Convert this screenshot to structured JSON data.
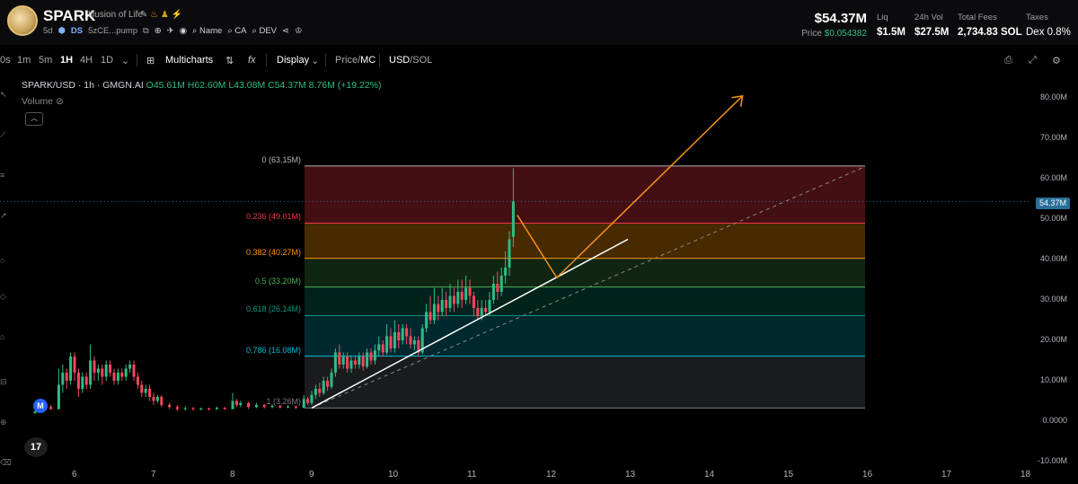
{
  "header": {
    "token_name": "SPARK",
    "token_fullname": "Illusion of Life",
    "age": "5d",
    "ds_label": "DS",
    "address": "5zCE...pump",
    "name_link": "Name",
    "ca_link": "CA",
    "dev_link": "DEV",
    "market_cap": "$54.37M",
    "price_label": "Price",
    "price_value": "$0.054382",
    "stats": [
      {
        "label": "Liq",
        "value": "$1.5M"
      },
      {
        "label": "24h Vol",
        "value": "$27.5M"
      },
      {
        "label": "Total Fees",
        "value": "2,734.83 SOL"
      },
      {
        "label": "Taxes",
        "value": "Dex 0.8%"
      }
    ]
  },
  "toolbar": {
    "timeframes": [
      "0s",
      "1m",
      "5m",
      "1H",
      "4H",
      "1D"
    ],
    "active_timeframe": "1H",
    "multicharts": "Multicharts",
    "fx": "fx",
    "display": "Display",
    "price_mc": {
      "a": "Price",
      "b": "MC"
    },
    "usd_sol": {
      "a": "USD",
      "b": "SOL"
    }
  },
  "legend": {
    "symbol": "SPARK/USD · 1h · GMGN.AI",
    "o": "O45.61M",
    "h": "H62.60M",
    "l": "L43.08M",
    "c": "C54.37M",
    "chg": "8.76M (+19.22%)",
    "volume_label": "Volume"
  },
  "colors": {
    "up": "#2ebd85",
    "down": "#f6465d",
    "orange": "#f7931a",
    "accent": "#2a6f99"
  },
  "fib_labels": [
    {
      "text": "0 (63.15M)",
      "color": "#b2b5be"
    },
    {
      "text": "0.236 (49.01M)",
      "color": "#f23645"
    },
    {
      "text": "0.382 (40.27M)",
      "color": "#ff9800"
    },
    {
      "text": "0.5 (33.20M)",
      "color": "#4caf50"
    },
    {
      "text": "0.618 (26.14M)",
      "color": "#089981"
    },
    {
      "text": "0.786 (16.08M)",
      "color": "#00bcd4"
    },
    {
      "text": "1 (3.26M)",
      "color": "#787b86"
    }
  ],
  "price_tag": "54.37M",
  "y_axis": [
    "80.00M",
    "70.00M",
    "60.00M",
    "50.00M",
    "40.00M",
    "30.00M",
    "20.00M",
    "10.00M",
    "0.0000",
    "-10.00M"
  ],
  "x_axis": [
    "6",
    "7",
    "8",
    "9",
    "10",
    "11",
    "12",
    "13",
    "14",
    "15",
    "16",
    "17",
    "18"
  ],
  "chart_data": {
    "type": "candlestick",
    "title": "SPARK/USD · 1h · GMGN.AI",
    "ylim": [
      -10,
      85
    ],
    "y_unit": "M",
    "last_close": 54.37,
    "fib": {
      "from": 63.15,
      "to": 3.26,
      "x_range": [
        9,
        16
      ]
    },
    "candles": [
      [
        5.5,
        2.0,
        2.4,
        1.8,
        2.6
      ],
      [
        5.6,
        2.4,
        3.5,
        2.2,
        3.8
      ],
      [
        5.7,
        3.5,
        3.0,
        2.8,
        4.0
      ],
      [
        5.8,
        3.0,
        9.0,
        2.9,
        13.0
      ],
      [
        5.85,
        9.0,
        12.0,
        7.0,
        14.0
      ],
      [
        5.9,
        12.0,
        10.0,
        8.0,
        13.0
      ],
      [
        5.95,
        10.0,
        16.0,
        9.0,
        17.0
      ],
      [
        6.0,
        16.0,
        12.0,
        10.0,
        17.0
      ],
      [
        6.05,
        12.0,
        8.0,
        6.0,
        13.0
      ],
      [
        6.1,
        8.0,
        11.0,
        7.0,
        12.0
      ],
      [
        6.15,
        11.0,
        9.0,
        8.0,
        12.0
      ],
      [
        6.2,
        9.0,
        15.0,
        8.0,
        19.0
      ],
      [
        6.25,
        15.0,
        12.0,
        10.0,
        16.0
      ],
      [
        6.3,
        12.0,
        13.0,
        10.0,
        14.0
      ],
      [
        6.35,
        13.0,
        11.0,
        9.0,
        14.0
      ],
      [
        6.4,
        11.0,
        14.0,
        10.0,
        15.0
      ],
      [
        6.45,
        14.0,
        12.0,
        11.0,
        15.0
      ],
      [
        6.5,
        12.0,
        10.0,
        9.0,
        13.0
      ],
      [
        6.55,
        10.0,
        12.0,
        9.0,
        13.0
      ],
      [
        6.6,
        12.0,
        11.0,
        10.0,
        13.0
      ],
      [
        6.65,
        11.0,
        13.0,
        10.0,
        14.0
      ],
      [
        6.7,
        13.0,
        14.0,
        12.0,
        15.0
      ],
      [
        6.75,
        14.0,
        11.0,
        10.0,
        15.0
      ],
      [
        6.8,
        11.0,
        9.0,
        8.0,
        12.0
      ],
      [
        6.85,
        9.0,
        7.0,
        6.0,
        10.0
      ],
      [
        6.9,
        7.0,
        8.0,
        6.0,
        9.0
      ],
      [
        6.95,
        8.0,
        6.0,
        5.0,
        9.0
      ],
      [
        7.0,
        6.0,
        5.0,
        4.0,
        7.0
      ],
      [
        7.05,
        5.0,
        6.0,
        4.5,
        6.5
      ],
      [
        7.1,
        6.0,
        4.0,
        3.5,
        6.5
      ],
      [
        7.2,
        4.0,
        3.5,
        3.0,
        4.5
      ],
      [
        7.3,
        3.5,
        3.0,
        2.5,
        4.0
      ],
      [
        7.4,
        3.0,
        3.2,
        2.6,
        3.6
      ],
      [
        7.5,
        3.2,
        3.0,
        2.6,
        3.5
      ],
      [
        7.6,
        3.0,
        3.1,
        2.7,
        3.4
      ],
      [
        7.7,
        3.1,
        3.0,
        2.7,
        3.4
      ],
      [
        7.8,
        3.0,
        3.3,
        2.8,
        3.6
      ],
      [
        7.9,
        3.3,
        3.0,
        2.8,
        3.5
      ],
      [
        8.0,
        3.0,
        5.0,
        2.9,
        7.0
      ],
      [
        8.05,
        5.0,
        4.0,
        3.5,
        5.5
      ],
      [
        8.1,
        4.0,
        4.5,
        3.5,
        5.0
      ],
      [
        8.2,
        4.5,
        3.5,
        3.0,
        4.8
      ],
      [
        8.3,
        3.5,
        4.0,
        3.2,
        4.5
      ],
      [
        8.4,
        4.0,
        3.5,
        3.1,
        4.3
      ],
      [
        8.5,
        3.5,
        3.8,
        3.2,
        4.2
      ],
      [
        8.6,
        3.8,
        3.4,
        3.1,
        4.0
      ],
      [
        8.7,
        3.4,
        3.6,
        3.2,
        4.0
      ],
      [
        8.8,
        3.6,
        3.3,
        3.0,
        3.9
      ],
      [
        8.9,
        3.3,
        5.5,
        3.2,
        6.5
      ],
      [
        8.95,
        5.5,
        4.5,
        4.0,
        6.0
      ],
      [
        9.0,
        4.5,
        6.5,
        4.0,
        7.5
      ],
      [
        9.05,
        6.5,
        8.0,
        5.5,
        9.0
      ],
      [
        9.1,
        8.0,
        7.0,
        6.0,
        9.5
      ],
      [
        9.15,
        7.0,
        10.0,
        6.5,
        11.0
      ],
      [
        9.2,
        10.0,
        8.5,
        7.5,
        11.0
      ],
      [
        9.25,
        8.5,
        12.0,
        8.0,
        13.0
      ],
      [
        9.3,
        12.0,
        17.0,
        11.0,
        18.0
      ],
      [
        9.35,
        17.0,
        14.0,
        13.0,
        19.0
      ],
      [
        9.4,
        14.0,
        16.0,
        13.0,
        17.0
      ],
      [
        9.45,
        16.0,
        13.0,
        12.0,
        17.0
      ],
      [
        9.5,
        13.0,
        15.0,
        12.0,
        16.0
      ],
      [
        9.55,
        15.0,
        14.0,
        13.0,
        16.0
      ],
      [
        9.6,
        14.0,
        16.0,
        13.0,
        17.0
      ],
      [
        9.65,
        16.0,
        13.5,
        12.5,
        17.0
      ],
      [
        9.7,
        13.5,
        17.0,
        13.0,
        18.0
      ],
      [
        9.75,
        17.0,
        15.0,
        14.0,
        18.0
      ],
      [
        9.8,
        15.0,
        17.5,
        14.0,
        19.0
      ],
      [
        9.85,
        17.5,
        19.0,
        16.0,
        21.0
      ],
      [
        9.9,
        19.0,
        17.0,
        16.0,
        20.0
      ],
      [
        9.95,
        17.0,
        21.0,
        16.5,
        24.0
      ],
      [
        10.0,
        21.0,
        18.0,
        17.0,
        23.0
      ],
      [
        10.05,
        18.0,
        22.0,
        17.0,
        25.0
      ],
      [
        10.1,
        22.0,
        20.0,
        18.0,
        24.0
      ],
      [
        10.15,
        20.0,
        23.0,
        19.0,
        24.0
      ],
      [
        10.2,
        23.0,
        21.0,
        19.0,
        24.0
      ],
      [
        10.25,
        21.0,
        19.0,
        18.0,
        23.0
      ],
      [
        10.3,
        19.0,
        20.0,
        17.5,
        21.0
      ],
      [
        10.35,
        20.0,
        17.0,
        16.0,
        21.0
      ],
      [
        10.4,
        17.0,
        23.0,
        16.5,
        24.0
      ],
      [
        10.45,
        23.0,
        27.0,
        22.0,
        29.0
      ],
      [
        10.5,
        27.0,
        25.0,
        24.0,
        31.0
      ],
      [
        10.55,
        25.0,
        29.0,
        24.0,
        33.0
      ],
      [
        10.6,
        29.0,
        27.0,
        25.0,
        31.0
      ],
      [
        10.65,
        27.0,
        30.0,
        26.0,
        33.0
      ],
      [
        10.7,
        30.0,
        28.0,
        26.0,
        32.0
      ],
      [
        10.75,
        28.0,
        31.0,
        27.0,
        34.0
      ],
      [
        10.8,
        31.0,
        29.0,
        27.0,
        33.0
      ],
      [
        10.85,
        29.0,
        32.0,
        28.0,
        35.0
      ],
      [
        10.9,
        32.0,
        30.0,
        28.0,
        35.0
      ],
      [
        10.95,
        30.0,
        33.0,
        29.0,
        36.0
      ],
      [
        11.0,
        33.0,
        31.0,
        29.0,
        35.0
      ],
      [
        11.05,
        31.0,
        28.0,
        26.0,
        32.0
      ],
      [
        11.1,
        28.0,
        26.0,
        25.0,
        30.0
      ],
      [
        11.15,
        26.0,
        28.0,
        25.0,
        30.0
      ],
      [
        11.2,
        28.0,
        27.0,
        26.0,
        30.0
      ],
      [
        11.25,
        27.0,
        30.0,
        26.0,
        32.0
      ],
      [
        11.3,
        30.0,
        34.0,
        29.0,
        36.0
      ],
      [
        11.35,
        34.0,
        32.0,
        30.0,
        37.0
      ],
      [
        11.4,
        32.0,
        36.0,
        31.0,
        38.0
      ],
      [
        11.45,
        36.0,
        38.0,
        34.0,
        42.0
      ],
      [
        11.5,
        38.0,
        45.0,
        36.0,
        47.0
      ],
      [
        11.55,
        45.6,
        54.37,
        43.08,
        62.6
      ]
    ]
  }
}
